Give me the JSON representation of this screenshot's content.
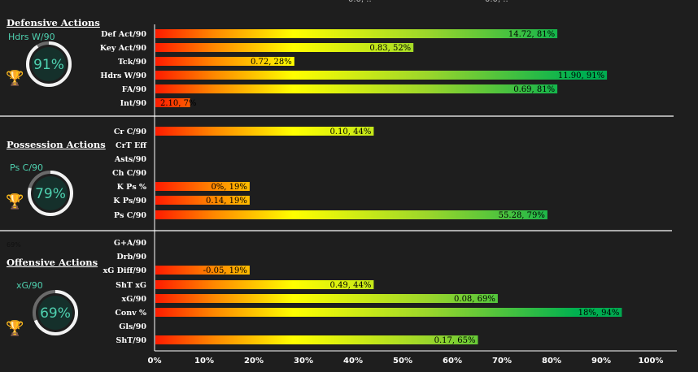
{
  "chart_data": {
    "type": "bar",
    "orientation": "horizontal",
    "x_ticks": [
      "0%",
      "10%",
      "20%",
      "30%",
      "40%",
      "50%",
      "60%",
      "70%",
      "80%",
      "90%",
      "100%"
    ],
    "xlim": [
      0,
      100
    ],
    "colors": {
      "low": "#ff1a00",
      "mid": "#ffff00",
      "high": "#00b050",
      "background": "#1e1e1e",
      "accent": "#4fd1b0"
    },
    "sections": [
      {
        "title": "Defensive Actions",
        "key_metric": "Hdrs W/90",
        "key_value": "91%",
        "key_percent": 91,
        "rows": [
          {
            "category": "Def Act/90",
            "value": 81,
            "label": "14.72, 81%"
          },
          {
            "category": "Key Act/90",
            "value": 52,
            "label": "0.83, 52%"
          },
          {
            "category": "Tck/90",
            "value": 28,
            "label": "0.72, 28%"
          },
          {
            "category": "Hdrs W/90",
            "value": 91,
            "label": "11.90, 91%"
          },
          {
            "category": "FA/90",
            "value": 81,
            "label": "0.69, 81%"
          },
          {
            "category": "Int/90",
            "value": 7,
            "label": "2.10, 7%"
          }
        ]
      },
      {
        "title": "Possession Actions",
        "key_metric": "Ps C/90",
        "key_value": "79%",
        "key_percent": 79,
        "rows": [
          {
            "category": "Cr C/90",
            "value": 44,
            "label": "0.10, 44%"
          },
          {
            "category": "CrT Eff",
            "value": null,
            "label": ""
          },
          {
            "category": "Asts/90",
            "value": null,
            "label": ""
          },
          {
            "category": "Ch C/90",
            "value": null,
            "label": ""
          },
          {
            "category": "K Ps %",
            "value": 19,
            "label": "0%, 19%"
          },
          {
            "category": "K Ps/90",
            "value": 19,
            "label": "0.14, 19%"
          },
          {
            "category": "Ps C/90",
            "value": 79,
            "label": "55.28, 79%"
          }
        ]
      },
      {
        "title": "Offensive Actions",
        "key_metric": "xG/90",
        "key_value": "69%",
        "key_percent": 69,
        "stray_text": "69%",
        "rows": [
          {
            "category": "G+A/90",
            "value": null,
            "label": ""
          },
          {
            "category": "Drb/90",
            "value": null,
            "label": ""
          },
          {
            "category": "xG Diff/90",
            "value": 19,
            "label": "-0.05, 19%"
          },
          {
            "category": "ShT xG",
            "value": 44,
            "label": "0.49, 44%"
          },
          {
            "category": "xG/90",
            "value": 69,
            "label": "0.08, 69%"
          },
          {
            "category": "Conv %",
            "value": 94,
            "label": "18%, 94%"
          },
          {
            "category": "Gls/90",
            "value": null,
            "label": ""
          },
          {
            "category": "ShT/90",
            "value": 65,
            "label": "0.17, 65%"
          }
        ]
      }
    ]
  }
}
